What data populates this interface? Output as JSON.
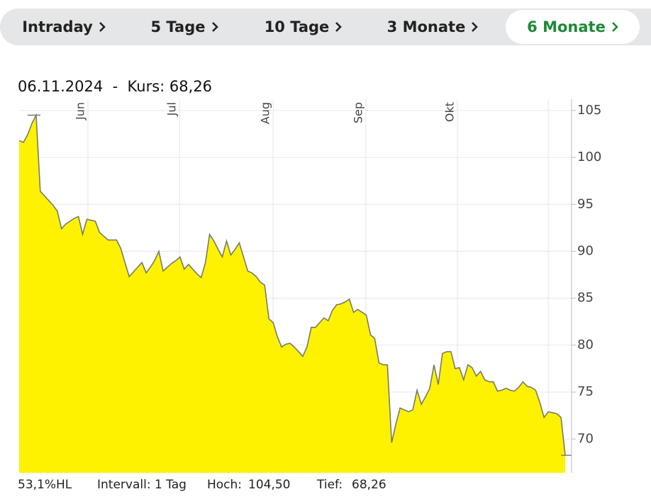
{
  "tabs": [
    {
      "label": "Intraday"
    },
    {
      "label": "5 Tage"
    },
    {
      "label": "10 Tage"
    },
    {
      "label": "3 Monate"
    },
    {
      "label": "6 Monate",
      "active": true
    }
  ],
  "header": {
    "date": "06.11.2024",
    "separator": "-",
    "label": "Kurs:",
    "value": "68,26"
  },
  "footer": {
    "range": "53,1%HL",
    "interval": "Intervall: 1 Tag",
    "high_label": "Hoch:",
    "high": "104,50",
    "low_label": "Tief:",
    "low": "68,26"
  },
  "chart_data": {
    "type": "area",
    "color": "#fff200",
    "line_color": "#7a7a6a",
    "grid": true,
    "values": [
      101.8,
      101.6,
      102.4,
      103.6,
      104.5,
      96.4,
      95.9,
      95.4,
      94.9,
      94.3,
      92.4,
      92.9,
      93.2,
      93.5,
      93.7,
      91.8,
      93.4,
      93.3,
      93.2,
      92.0,
      91.6,
      91.2,
      91.2,
      91.2,
      90.3,
      88.8,
      87.3,
      87.8,
      88.3,
      88.8,
      87.7,
      88.3,
      89.0,
      90.0,
      87.9,
      88.3,
      88.7,
      89.0,
      89.4,
      88.1,
      88.6,
      88.1,
      87.6,
      87.2,
      88.8,
      91.8,
      91.1,
      90.2,
      89.4,
      91.1,
      89.6,
      90.2,
      90.9,
      89.4,
      87.9,
      87.7,
      87.3,
      86.7,
      86.4,
      82.8,
      82.4,
      80.9,
      79.8,
      80.1,
      80.2,
      79.8,
      79.3,
      78.8,
      79.8,
      81.9,
      81.9,
      82.4,
      82.9,
      82.6,
      83.7,
      84.3,
      84.4,
      84.6,
      84.9,
      83.5,
      83.8,
      83.5,
      83.2,
      81.1,
      80.7,
      78.1,
      77.9,
      77.9,
      69.6,
      71.6,
      73.3,
      73.1,
      72.9,
      73.1,
      75.2,
      73.7,
      74.5,
      75.4,
      77.9,
      75.8,
      79.1,
      79.3,
      79.3,
      77.5,
      77.6,
      76.3,
      77.9,
      77.6,
      76.7,
      77.2,
      76.3,
      76.1,
      76.1,
      75.1,
      75.2,
      75.4,
      75.2,
      75.1,
      75.5,
      76.1,
      75.6,
      75.5,
      75.2,
      73.9,
      72.3,
      72.9,
      72.8,
      72.7,
      72.3,
      68.26
    ],
    "xlim": [
      0,
      130.5
    ],
    "xticks": [
      {
        "value": 16.25,
        "label": "Jun"
      },
      {
        "value": 37.9,
        "label": "Jul"
      },
      {
        "value": 60.0,
        "label": "Aug"
      },
      {
        "value": 81.9,
        "label": "Sep"
      },
      {
        "value": 103.5,
        "label": "Okt"
      },
      {
        "value": 125.0,
        "label": null
      }
    ],
    "ylim": [
      66.4,
      106.2
    ],
    "yticks": [
      70,
      75,
      80,
      85,
      90,
      95,
      100,
      105
    ]
  }
}
